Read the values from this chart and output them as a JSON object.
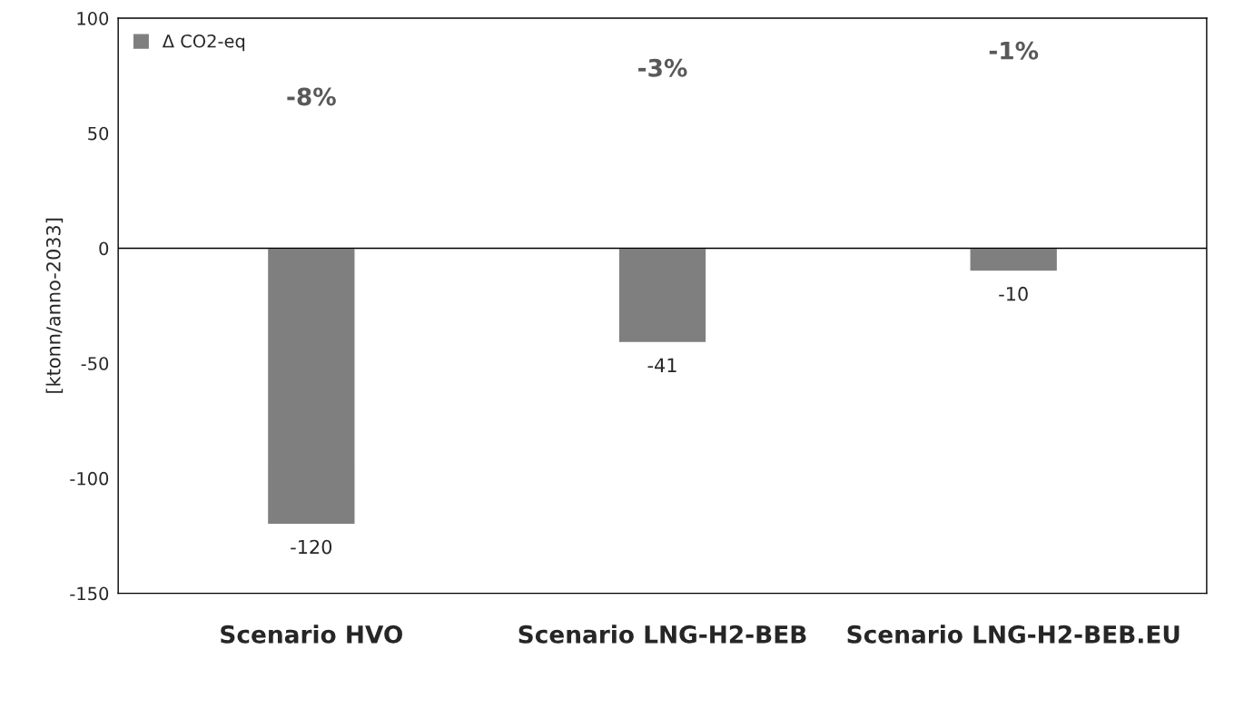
{
  "chart_data": {
    "type": "bar",
    "ylabel": "[ktonn/anno-2033]",
    "categories": [
      "Scenario HVO",
      "Scenario LNG-H2-BEB",
      "Scenario LNG-H2-BEB.EU"
    ],
    "series": [
      {
        "name": "Δ CO2-eq",
        "color": "#7f7f7f",
        "values": [
          -120,
          -41,
          -10
        ]
      }
    ],
    "ylim": [
      -150,
      100
    ],
    "yticks": [
      -150,
      -100,
      -50,
      0,
      50,
      100
    ],
    "data_labels": true,
    "legend": "top left",
    "annotations": [
      "-8%",
      "-3%",
      "-1%"
    ]
  }
}
